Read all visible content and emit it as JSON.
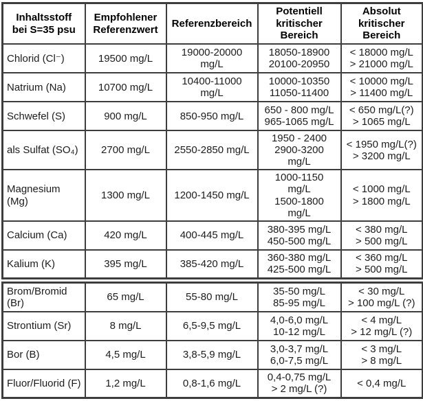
{
  "colors": {
    "background": "#ffffff",
    "border": "#3d3d3d",
    "text": "#1c1c1c",
    "header_text": "#000000"
  },
  "table": {
    "header": [
      "Inhaltsstoff\nbei S=35 psu",
      "Empfohlener\nReferenzwert",
      "Referenzbereich",
      "Potentiell\nkritischer\nBereich",
      "Absolut\nkritischer\nBereich"
    ],
    "rows": [
      {
        "substance": "Chlorid (Cl⁻)",
        "recommended": "19500 mg/L",
        "reference_range": "19000-20000\nmg/L",
        "potential_critical": "18050-18900\n20100-20950",
        "absolute_critical": "< 18000 mg/L\n> 21000 mg/L"
      },
      {
        "substance": "Natrium (Na)",
        "recommended": "10700 mg/L",
        "reference_range": "10400-11000\nmg/L",
        "potential_critical": "10000-10350\n11050-11400",
        "absolute_critical": "< 10000 mg/L\n> 11400 mg/L"
      },
      {
        "substance": "Schwefel (S)",
        "recommended": "900 mg/L",
        "reference_range": "850-950 mg/L",
        "potential_critical": "650 - 800 mg/L\n965-1065 mg/L",
        "absolute_critical": "< 650 mg/L(?)\n> 1065 mg/L"
      },
      {
        "substance": "als Sulfat (SO₄)",
        "recommended": "2700 mg/L",
        "reference_range": "2550-2850 mg/L",
        "potential_critical": "1950 - 2400\n2900-3200\nmg/L",
        "absolute_critical": "< 1950 mg/L(?)\n> 3200 mg/L"
      },
      {
        "substance": "Magnesium (Mg)",
        "recommended": "1300 mg/L",
        "reference_range": "1200-1450 mg/L",
        "potential_critical": "1000-1150\nmg/L\n1500-1800\nmg/L",
        "absolute_critical": "< 1000 mg/L\n> 1800 mg/L"
      },
      {
        "substance": "Calcium (Ca)",
        "recommended": "420 mg/L",
        "reference_range": "400-445 mg/L",
        "potential_critical": "380-395 mg/L\n450-500 mg/L",
        "absolute_critical": "< 380 mg/L\n> 500 mg/L"
      },
      {
        "substance": "Kalium (K)",
        "recommended": "395 mg/L",
        "reference_range": "385-420 mg/L",
        "potential_critical": "360-380 mg/L\n425-500 mg/L",
        "absolute_critical": "< 360 mg/L\n> 500 mg/L"
      },
      {
        "substance": "Brom/Bromid (Br)",
        "recommended": "65 mg/L",
        "reference_range": "55-80 mg/L",
        "potential_critical": "35-50 mg/L\n85-95 mg/L",
        "absolute_critical": "< 30 mg/L\n> 100 mg/L (?)"
      },
      {
        "substance": "Strontium (Sr)",
        "recommended": "8 mg/L",
        "reference_range": "6,5-9,5 mg/L",
        "potential_critical": "4,0-6,0 mg/L\n10-12 mg/L",
        "absolute_critical": "< 4 mg/L\n> 12 mg/L (?)"
      },
      {
        "substance": "Bor (B)",
        "recommended": "4,5 mg/L",
        "reference_range": "3,8-5,9 mg/L",
        "potential_critical": "3,0-3,7 mg/L\n6,0-7,5 mg/L",
        "absolute_critical": "< 3 mg/L\n> 8 mg/L"
      },
      {
        "substance": "Fluor/Fluorid (F)",
        "recommended": "1,2 mg/L",
        "reference_range": "0,8-1,6 mg/L",
        "potential_critical": "0,4-0,75 mg/L\n> 2 mg/L (?)",
        "absolute_critical": "< 0,4 mg/L"
      }
    ]
  }
}
